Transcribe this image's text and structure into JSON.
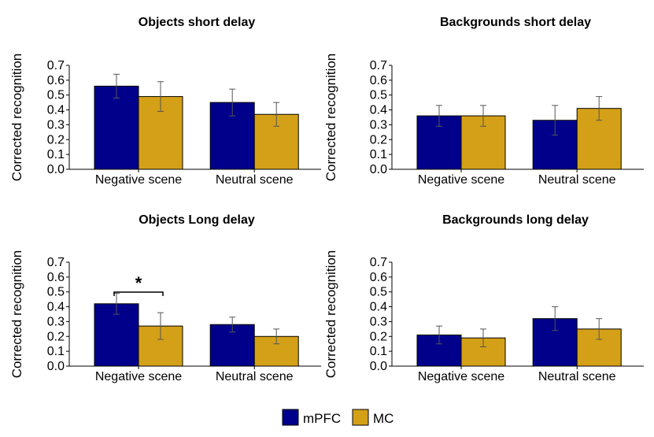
{
  "legend": {
    "items": [
      {
        "label": "mPFC",
        "color": "#00008b"
      },
      {
        "label": "MC",
        "color": "#d4a017"
      }
    ]
  },
  "chart_data": [
    {
      "type": "bar",
      "title": "Objects short delay",
      "ylabel": "Corrected recognition",
      "ylim": [
        0,
        0.7
      ],
      "yticks": [
        "0.0",
        "0.1",
        "0.2",
        "0.3",
        "0.4",
        "0.5",
        "0.6",
        "0.7"
      ],
      "categories": [
        "Negative scene",
        "Neutral scene"
      ],
      "series": [
        {
          "name": "mPFC",
          "values": [
            0.56,
            0.45
          ],
          "errors": [
            0.08,
            0.09
          ]
        },
        {
          "name": "MC",
          "values": [
            0.49,
            0.37
          ],
          "errors": [
            0.1,
            0.08
          ]
        }
      ],
      "annotation": null
    },
    {
      "type": "bar",
      "title": "Backgrounds short delay",
      "ylabel": "Corrected recognition",
      "ylim": [
        0,
        0.7
      ],
      "yticks": [
        "0.0",
        "0.1",
        "0.2",
        "0.3",
        "0.4",
        "0.5",
        "0.6",
        "0.7"
      ],
      "categories": [
        "Negative scene",
        "Neutral scene"
      ],
      "series": [
        {
          "name": "mPFC",
          "values": [
            0.36,
            0.33
          ],
          "errors": [
            0.07,
            0.1
          ]
        },
        {
          "name": "MC",
          "values": [
            0.36,
            0.41
          ],
          "errors": [
            0.07,
            0.08
          ]
        }
      ],
      "annotation": null
    },
    {
      "type": "bar",
      "title": "Objects Long delay",
      "ylabel": "Corrected recognition",
      "ylim": [
        0,
        0.7
      ],
      "yticks": [
        "0.0",
        "0.1",
        "0.2",
        "0.3",
        "0.4",
        "0.5",
        "0.6",
        "0.7"
      ],
      "categories": [
        "Negative scene",
        "Neutral scene"
      ],
      "series": [
        {
          "name": "mPFC",
          "values": [
            0.42,
            0.28
          ],
          "errors": [
            0.07,
            0.05
          ]
        },
        {
          "name": "MC",
          "values": [
            0.27,
            0.2
          ],
          "errors": [
            0.09,
            0.05
          ]
        }
      ],
      "annotation": {
        "text": "*",
        "category_index": 0
      }
    },
    {
      "type": "bar",
      "title": "Backgrounds long delay",
      "ylabel": "Corrected recognition",
      "ylim": [
        0,
        0.7
      ],
      "yticks": [
        "0.0",
        "0.1",
        "0.2",
        "0.3",
        "0.4",
        "0.5",
        "0.6",
        "0.7"
      ],
      "categories": [
        "Negative scene",
        "Neutral scene"
      ],
      "series": [
        {
          "name": "mPFC",
          "values": [
            0.21,
            0.32
          ],
          "errors": [
            0.06,
            0.08
          ]
        },
        {
          "name": "MC",
          "values": [
            0.19,
            0.25
          ],
          "errors": [
            0.06,
            0.07
          ]
        }
      ],
      "annotation": null
    }
  ]
}
